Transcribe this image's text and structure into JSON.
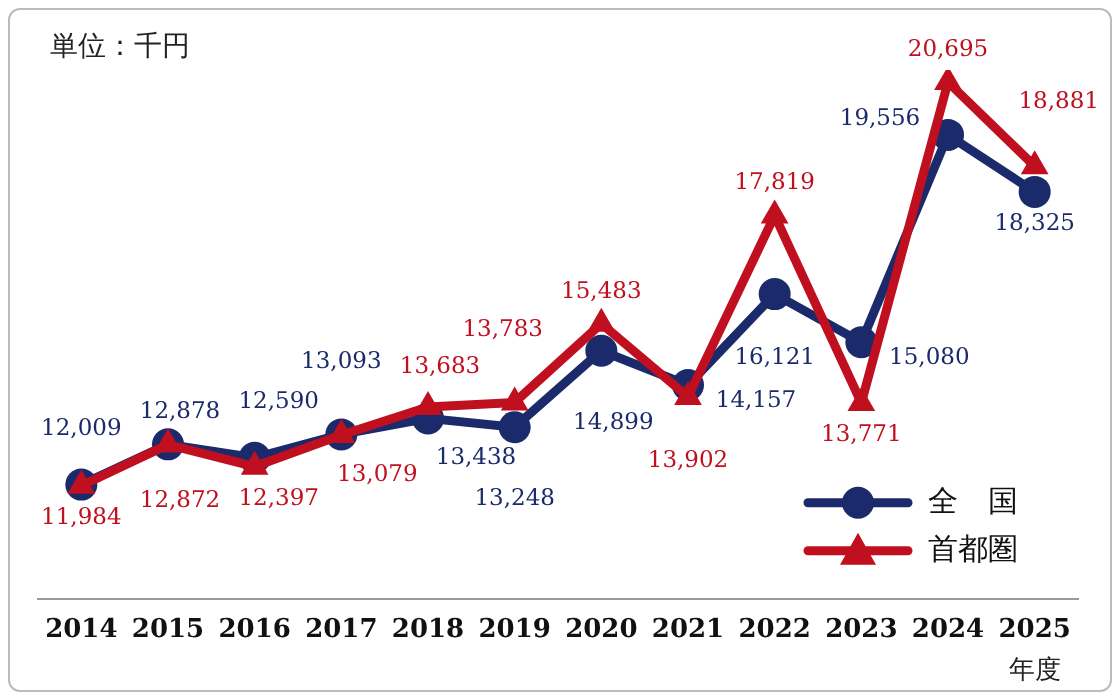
{
  "chart_data": {
    "type": "line",
    "ylabel": "単位：千円",
    "xlabel": "年度",
    "categories": [
      "2014",
      "2015",
      "2016",
      "2017",
      "2018",
      "2019",
      "2020",
      "2021",
      "2022",
      "2023",
      "2024",
      "2025"
    ],
    "series": [
      {
        "name": "全　国",
        "color": "#1b2a6b",
        "marker": "circle",
        "values": [
          12009,
          12878,
          12590,
          13093,
          13438,
          13248,
          14899,
          14157,
          16121,
          15080,
          19556,
          18325
        ],
        "value_labels": [
          "12,009",
          "12,878",
          "12,590",
          "13,093",
          "13,438",
          "13,248",
          "14,899",
          "14,157",
          "16,121",
          "15,080",
          "19,556",
          "18,325"
        ]
      },
      {
        "name": "首都圏",
        "color": "#c00f1e",
        "marker": "triangle",
        "values": [
          11984,
          12872,
          12397,
          13079,
          13683,
          13783,
          15483,
          13902,
          17819,
          13771,
          20695,
          18881
        ],
        "value_labels": [
          "11,984",
          "12,872",
          "12,397",
          "13,079",
          "13,683",
          "13,783",
          "15,483",
          "13,902",
          "17,819",
          "13,771",
          "20,695",
          "18,881"
        ]
      }
    ],
    "tick_labels": "x",
    "grid": false,
    "legend": "bottom right",
    "line_style": "solid"
  }
}
